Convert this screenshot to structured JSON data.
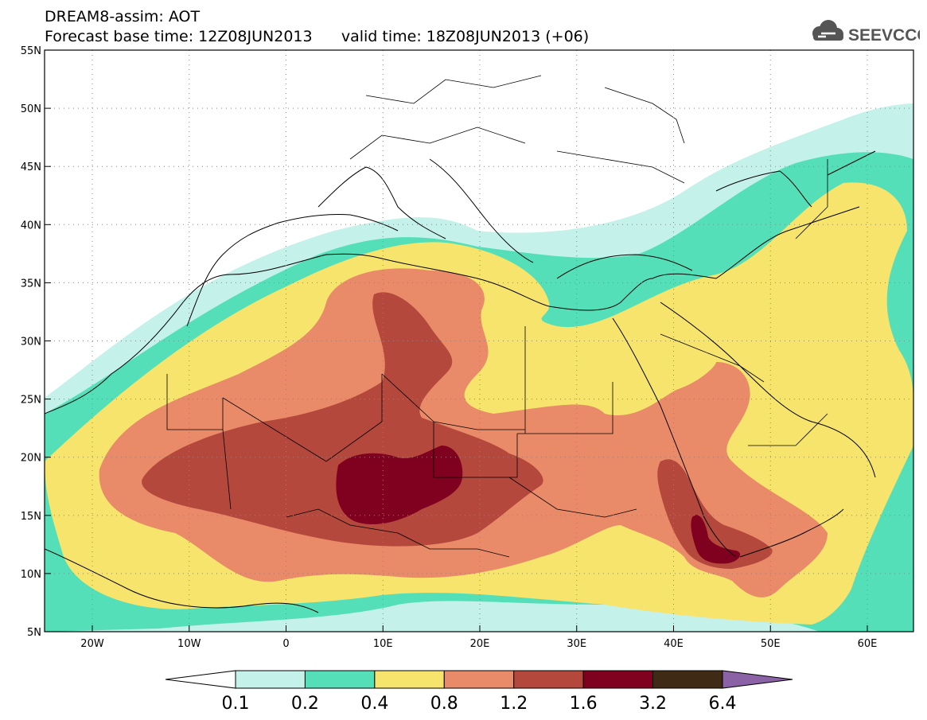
{
  "header": {
    "title": "DREAM8-assim: AOT",
    "base_time_label": "Forecast base time: 12Z08JUN2013",
    "valid_time_label": "valid time: 18Z08JUN2013 (+06)"
  },
  "logo": {
    "text": "SEEVCCC",
    "icon": "cloud-icon"
  },
  "axes": {
    "lon_ticks": [
      "20W",
      "10W",
      "0",
      "10E",
      "20E",
      "30E",
      "40E",
      "50E",
      "60E"
    ],
    "lat_ticks": [
      "55N",
      "50N",
      "45N",
      "40N",
      "35N",
      "30N",
      "25N",
      "20N",
      "15N",
      "10N",
      "5N"
    ]
  },
  "legend": {
    "thresholds": [
      "0.1",
      "0.2",
      "0.4",
      "0.8",
      "1.2",
      "1.6",
      "3.2",
      "6.4"
    ],
    "colors": [
      "#c4f1ea",
      "#54dfb9",
      "#f6e46c",
      "#e98a68",
      "#b4483c",
      "#80001f",
      "#3f2a16",
      "#8c62a6"
    ]
  }
}
